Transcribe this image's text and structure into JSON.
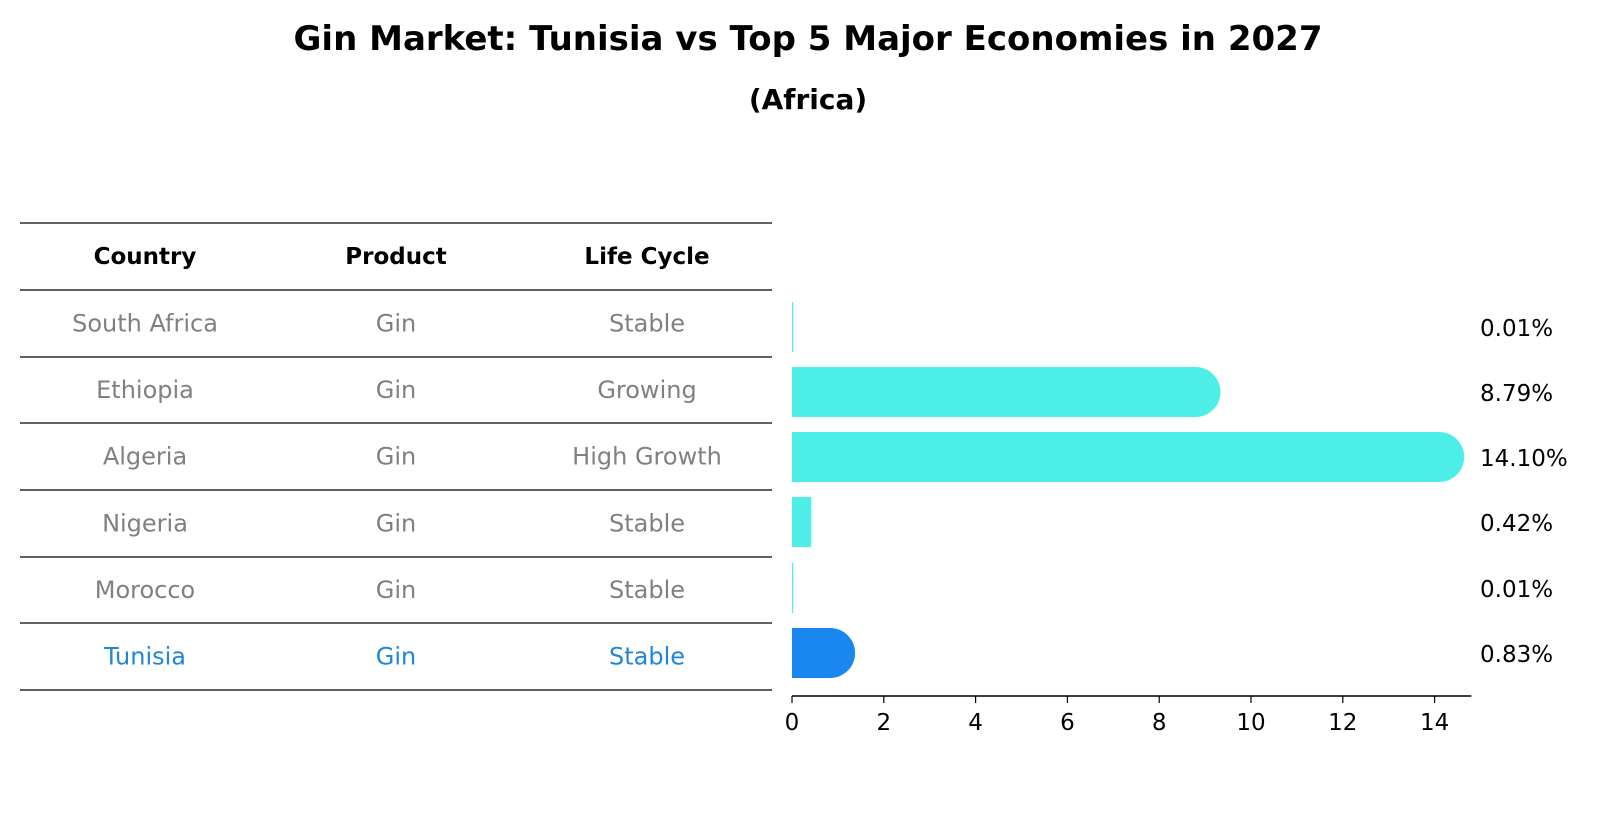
{
  "chart_data": {
    "type": "bar",
    "orientation": "horizontal",
    "title": "Gin Market: Tunisia vs Top 5 Major Economies in 2027",
    "subtitle": "(Africa)",
    "table": {
      "headers": [
        "Country",
        "Product",
        "Life Cycle"
      ],
      "rows": [
        [
          "South Africa",
          "Gin",
          "Stable"
        ],
        [
          "Ethiopia",
          "Gin",
          "Growing"
        ],
        [
          "Algeria",
          "Gin",
          "High Growth"
        ],
        [
          "Nigeria",
          "Gin",
          "Stable"
        ],
        [
          "Morocco",
          "Gin",
          "Stable"
        ],
        [
          "Tunisia",
          "Gin",
          "Stable"
        ]
      ],
      "highlight_row": 5
    },
    "categories": [
      "South Africa",
      "Ethiopia",
      "Algeria",
      "Nigeria",
      "Morocco",
      "Tunisia"
    ],
    "values": [
      0.01,
      8.79,
      14.1,
      0.42,
      0.01,
      0.83
    ],
    "value_labels": [
      "0.01%",
      "8.79%",
      "14.10%",
      "0.42%",
      "0.01%",
      "0.83%"
    ],
    "xlim": [
      0,
      14.8
    ],
    "xticks": [
      0,
      2,
      4,
      6,
      8,
      10,
      12,
      14
    ],
    "colors": {
      "bar": "#4deee8",
      "highlight": "#1a86f0",
      "text_default": "#808080",
      "text_highlight": "#1f87d6"
    }
  }
}
